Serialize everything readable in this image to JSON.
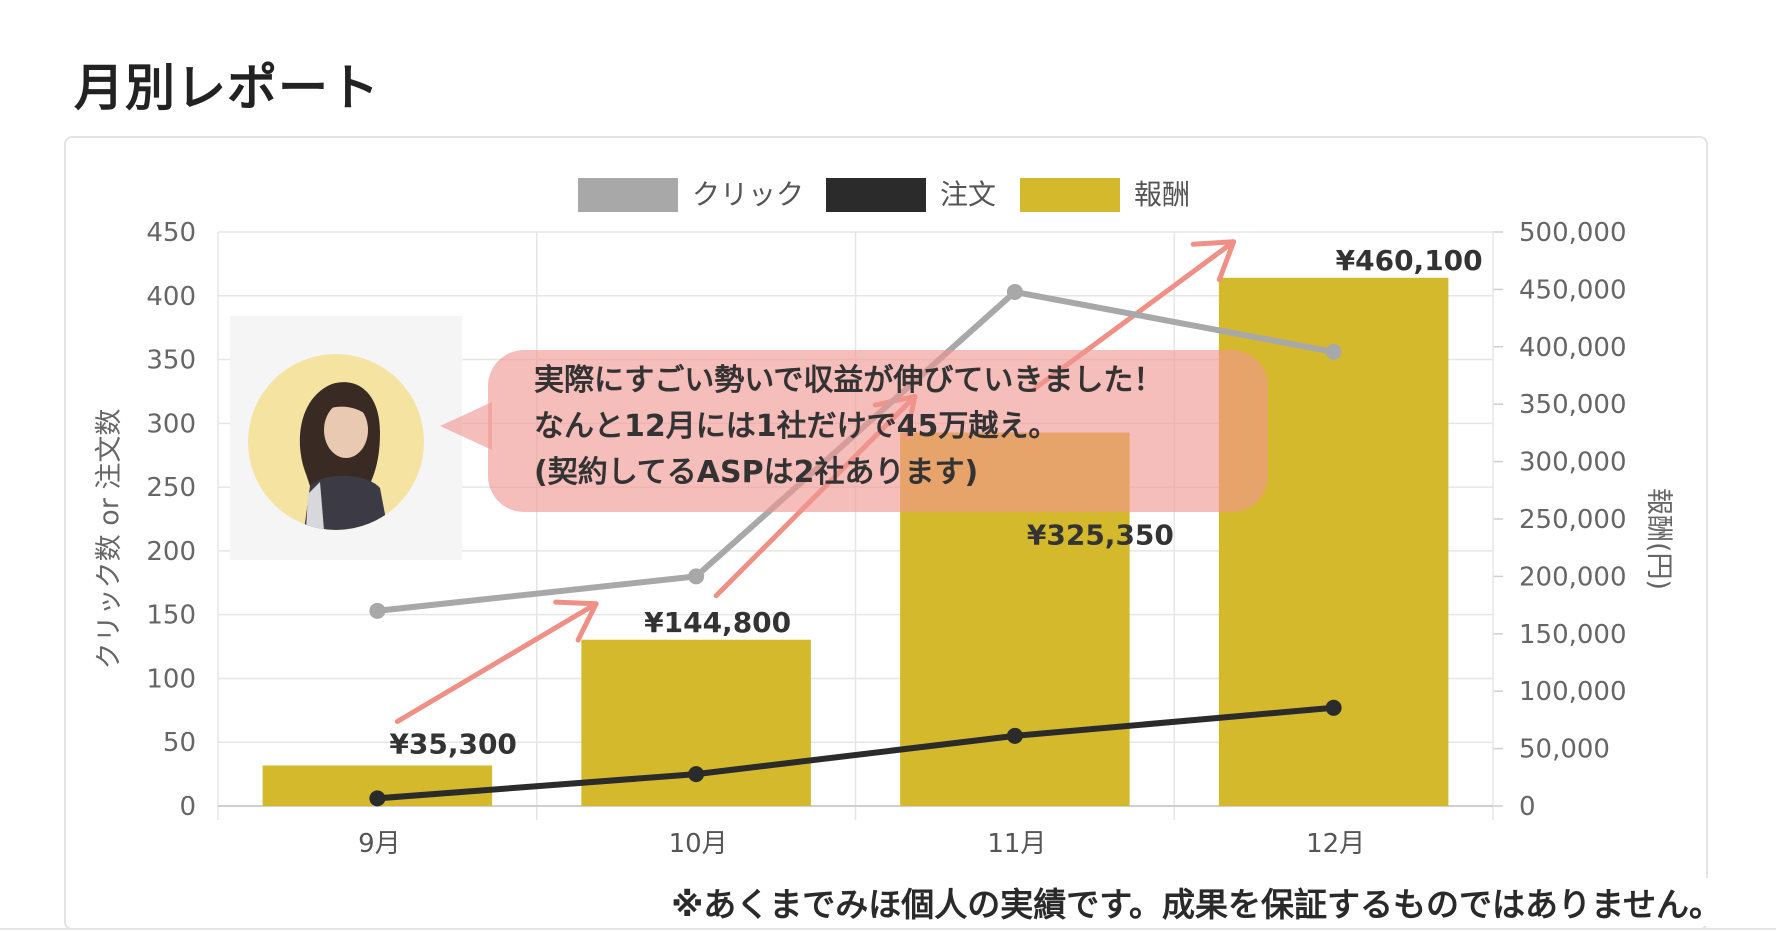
{
  "page": {
    "title": "月別レポート"
  },
  "disclaimer": "※あくまでみほ個人の実績です。成果を保証するものではありません。",
  "callout": {
    "lines": [
      "実際にすごい勢いで収益が伸びていきました！",
      "なんと12月には1社だけで45万越え。",
      "(契約してるASPは2社あります)"
    ]
  },
  "colors": {
    "click": "#a8a8a8",
    "order": "#2b2b2b",
    "reward": "#d4b92c",
    "arrow": "#ef8f86",
    "callout": "#f0968f",
    "avatar_bg": "#f5e3a2",
    "grid": "#e6e6e6"
  },
  "chart_data": {
    "type": "bar",
    "categories": [
      "9月",
      "10月",
      "11月",
      "12月"
    ],
    "series": [
      {
        "name": "クリック",
        "type": "line",
        "axis": "left",
        "values": [
          153,
          180,
          403,
          356
        ]
      },
      {
        "name": "注文",
        "type": "line",
        "axis": "left",
        "values": [
          6,
          25,
          55,
          77
        ]
      },
      {
        "name": "報酬",
        "type": "bar",
        "axis": "right",
        "values": [
          35300,
          144800,
          325350,
          460100
        ]
      }
    ],
    "data_labels": [
      "¥35,300",
      "¥144,800",
      "¥325,350",
      "¥460,100"
    ],
    "ylabel": "クリック数 or 注文数",
    "y2label": "報酬(円)",
    "ylim": [
      0,
      450
    ],
    "y_ticks": [
      "0",
      "50",
      "100",
      "150",
      "200",
      "250",
      "300",
      "350",
      "400",
      "450"
    ],
    "y2lim": [
      0,
      500000
    ],
    "y2_ticks": [
      "0",
      "50,000",
      "100,000",
      "150,000",
      "200,000",
      "250,000",
      "300,000",
      "350,000",
      "400,000",
      "450,000",
      "500,000"
    ],
    "grid": true,
    "legend": "top-center"
  }
}
